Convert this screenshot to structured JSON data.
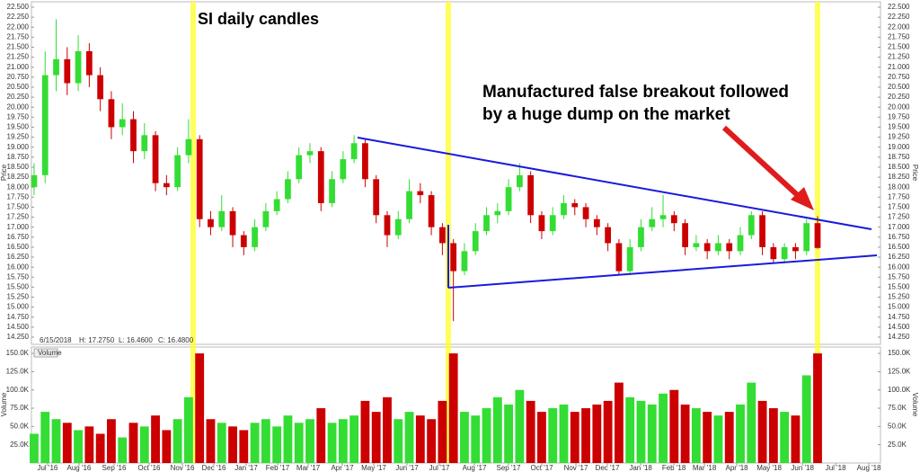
{
  "chart_data": {
    "type": "candlestick",
    "title": "SI daily candles",
    "annotation": [
      "Manufactured false breakout followed",
      "by a huge dump on the market"
    ],
    "y_label": "Price",
    "volume_label": "Volume",
    "info": {
      "date": "6/15/2018",
      "high": "H: 17.2750",
      "low": "L: 16.4600",
      "close": "C: 16.4800"
    },
    "up_color": "#33dd33",
    "down_color": "#cc0000",
    "open": [
      18.0,
      18.3,
      20.8,
      21.2,
      20.6,
      21.4,
      20.8,
      20.2,
      19.5,
      19.7,
      18.9,
      19.3,
      18.1,
      18.0,
      18.8,
      19.2,
      17.2,
      17.0,
      17.4,
      16.8,
      16.5,
      17.0,
      17.4,
      17.7,
      18.2,
      18.8,
      18.9,
      17.6,
      18.2,
      18.7,
      19.1,
      18.2,
      17.3,
      16.8,
      17.2,
      17.9,
      17.8,
      17.0,
      16.6,
      15.9,
      16.4,
      16.9,
      17.3,
      17.4,
      18.0,
      18.3,
      17.3,
      16.9,
      17.3,
      17.6,
      17.5,
      17.2,
      17.0,
      16.6,
      15.9,
      16.5,
      17.0,
      17.2,
      17.3,
      17.1,
      16.5,
      16.6,
      16.4,
      16.6,
      16.4,
      16.8,
      17.3,
      16.5,
      16.2,
      16.5,
      16.4,
      17.1
    ],
    "high": [
      18.6,
      21.4,
      22.2,
      21.5,
      21.8,
      21.6,
      21.0,
      20.4,
      20.1,
      19.9,
      19.6,
      19.4,
      18.3,
      19.0,
      19.7,
      19.3,
      17.4,
      17.8,
      17.5,
      16.9,
      17.2,
      17.6,
      17.9,
      18.4,
      19.0,
      19.1,
      19.0,
      18.4,
      18.9,
      19.3,
      19.2,
      18.3,
      17.4,
      17.4,
      18.2,
      18.1,
      17.9,
      17.1,
      16.7,
      16.6,
      17.1,
      17.5,
      17.6,
      18.2,
      18.6,
      18.4,
      17.4,
      17.5,
      17.8,
      17.7,
      17.6,
      17.3,
      17.1,
      16.7,
      16.7,
      17.2,
      17.5,
      17.8,
      17.4,
      17.2,
      16.8,
      16.7,
      16.8,
      16.7,
      17.0,
      17.4,
      17.4,
      16.6,
      16.6,
      16.6,
      17.2,
      17.275
    ],
    "low": [
      17.8,
      18.1,
      20.4,
      20.3,
      20.4,
      20.5,
      19.9,
      19.2,
      19.3,
      18.6,
      18.7,
      17.9,
      17.8,
      17.9,
      18.6,
      17.0,
      16.8,
      16.9,
      16.5,
      16.3,
      16.4,
      16.9,
      17.3,
      17.6,
      18.1,
      18.6,
      17.4,
      17.5,
      18.1,
      18.6,
      18.0,
      17.1,
      16.5,
      16.7,
      17.1,
      17.6,
      16.8,
      16.3,
      14.65,
      15.8,
      16.3,
      16.8,
      17.1,
      17.3,
      17.9,
      17.1,
      16.7,
      16.8,
      17.2,
      17.3,
      17.0,
      16.8,
      16.4,
      15.8,
      15.8,
      16.4,
      16.9,
      17.0,
      16.9,
      16.3,
      16.4,
      16.2,
      16.3,
      16.2,
      16.3,
      16.7,
      16.3,
      16.1,
      16.1,
      16.2,
      16.3,
      16.46
    ],
    "close": [
      18.3,
      20.8,
      21.2,
      20.6,
      21.4,
      20.8,
      20.2,
      19.5,
      19.7,
      18.9,
      19.3,
      18.1,
      18.0,
      18.8,
      19.2,
      17.2,
      17.0,
      17.4,
      16.8,
      16.5,
      17.0,
      17.4,
      17.7,
      18.2,
      18.8,
      18.9,
      17.6,
      18.2,
      18.7,
      19.1,
      18.2,
      17.3,
      16.8,
      17.2,
      17.9,
      17.8,
      17.0,
      16.6,
      15.9,
      16.4,
      16.9,
      17.3,
      17.4,
      18.0,
      18.3,
      17.3,
      16.9,
      17.3,
      17.6,
      17.5,
      17.2,
      17.0,
      16.6,
      15.9,
      16.5,
      17.0,
      17.2,
      17.3,
      17.1,
      16.5,
      16.6,
      16.4,
      16.6,
      16.4,
      16.8,
      17.3,
      16.5,
      16.2,
      16.5,
      16.4,
      17.1,
      16.48
    ],
    "volume": [
      40000,
      70000,
      60000,
      55000,
      45000,
      50000,
      40000,
      60000,
      35000,
      55000,
      50000,
      65000,
      45000,
      60000,
      90000,
      150000,
      60000,
      55000,
      50000,
      45000,
      55000,
      60000,
      50000,
      65000,
      55000,
      60000,
      75000,
      55000,
      60000,
      65000,
      85000,
      70000,
      90000,
      60000,
      70000,
      65000,
      60000,
      85000,
      150000,
      70000,
      65000,
      75000,
      90000,
      80000,
      100000,
      85000,
      70000,
      75000,
      80000,
      70000,
      75000,
      80000,
      85000,
      110000,
      90000,
      85000,
      80000,
      95000,
      100000,
      80000,
      75000,
      70000,
      65000,
      70000,
      80000,
      110000,
      85000,
      75000,
      70000,
      65000,
      120000,
      150000
    ],
    "xlim": [
      -0.24,
      76.7
    ],
    "xticks": [
      {
        "value": 1.22,
        "label": "Jul '16"
      },
      {
        "value": 4.07,
        "label": "Aug '16"
      },
      {
        "value": 7.25,
        "label": "Sep '16"
      },
      {
        "value": 10.42,
        "label": "Oct '16"
      },
      {
        "value": 13.44,
        "label": "Nov '16"
      },
      {
        "value": 16.29,
        "label": "Dec '16"
      },
      {
        "value": 19.22,
        "label": "Jan '17"
      },
      {
        "value": 22.07,
        "label": "Feb '17"
      },
      {
        "value": 24.84,
        "label": "Mar '17"
      },
      {
        "value": 27.93,
        "label": "Apr '17"
      },
      {
        "value": 30.78,
        "label": "May '17"
      },
      {
        "value": 33.79,
        "label": "Jun '17"
      },
      {
        "value": 36.73,
        "label": "Jul '17"
      },
      {
        "value": 39.9,
        "label": "Aug '17"
      },
      {
        "value": 42.99,
        "label": "Sep '17"
      },
      {
        "value": 46.01,
        "label": "Oct '17"
      },
      {
        "value": 49.1,
        "label": "Nov '17"
      },
      {
        "value": 51.95,
        "label": "Dec '17"
      },
      {
        "value": 54.97,
        "label": "Jan '18"
      },
      {
        "value": 57.98,
        "label": "Feb '18"
      },
      {
        "value": 60.75,
        "label": "Mar '18"
      },
      {
        "value": 63.68,
        "label": "Apr '18"
      },
      {
        "value": 66.61,
        "label": "May '18"
      },
      {
        "value": 69.63,
        "label": "Jun '18"
      },
      {
        "value": 72.64,
        "label": "Jul '18"
      },
      {
        "value": 75.65,
        "label": "Aug '18"
      }
    ],
    "ylim": [
      14.07,
      22.635
    ],
    "yticks": [
      {
        "value": 14.25,
        "label": "14.250"
      },
      {
        "value": 14.5,
        "label": "14.500"
      },
      {
        "value": 14.75,
        "label": "14.750"
      },
      {
        "value": 15,
        "label": "15.000"
      },
      {
        "value": 15.25,
        "label": "15.250"
      },
      {
        "value": 15.5,
        "label": "15.500"
      },
      {
        "value": 15.75,
        "label": "15.750"
      },
      {
        "value": 16,
        "label": "16.000"
      },
      {
        "value": 16.25,
        "label": "16.250"
      },
      {
        "value": 16.5,
        "label": "16.500"
      },
      {
        "value": 16.75,
        "label": "16.750"
      },
      {
        "value": 17,
        "label": "17.000"
      },
      {
        "value": 17.25,
        "label": "17.250"
      },
      {
        "value": 17.5,
        "label": "17.500"
      },
      {
        "value": 17.75,
        "label": "17.750"
      },
      {
        "value": 18,
        "label": "18.000"
      },
      {
        "value": 18.25,
        "label": "18.250"
      },
      {
        "value": 18.5,
        "label": "18.500"
      },
      {
        "value": 18.75,
        "label": "18.750"
      },
      {
        "value": 19,
        "label": "19.000"
      },
      {
        "value": 19.25,
        "label": "19.250"
      },
      {
        "value": 19.5,
        "label": "19.500"
      },
      {
        "value": 19.75,
        "label": "19.750"
      },
      {
        "value": 20,
        "label": "20.000"
      },
      {
        "value": 20.25,
        "label": "20.250"
      },
      {
        "value": 20.5,
        "label": "20.500"
      },
      {
        "value": 20.75,
        "label": "20.750"
      },
      {
        "value": 21,
        "label": "21.000"
      },
      {
        "value": 21.25,
        "label": "21.250"
      },
      {
        "value": 21.5,
        "label": "21.500"
      },
      {
        "value": 21.75,
        "label": "21.750"
      },
      {
        "value": 22,
        "label": "22.000"
      },
      {
        "value": 22.25,
        "label": "22.250"
      },
      {
        "value": 22.5,
        "label": "22.500"
      }
    ],
    "y2lim": [
      0,
      158700
    ],
    "y2ticks": [
      {
        "value": 25000,
        "label": "25.0K"
      },
      {
        "value": 50000,
        "label": "50.0K"
      },
      {
        "value": 75000,
        "label": "75.0K"
      },
      {
        "value": 100000,
        "label": "100.0K"
      },
      {
        "value": 125000,
        "label": "125.0K"
      },
      {
        "value": 150000,
        "label": "150.0K"
      }
    ]
  }
}
